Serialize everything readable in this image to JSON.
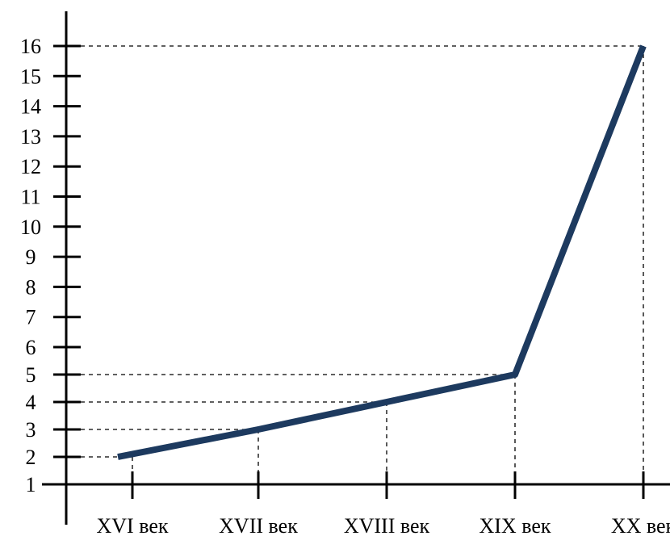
{
  "chart_data": {
    "type": "line",
    "categories": [
      "XVI век",
      "XVII век",
      "XVIII век",
      "XIX век",
      "XX век"
    ],
    "y_ticks": [
      "1",
      "2",
      "3",
      "4",
      "5",
      "6",
      "7",
      "8",
      "9",
      "10",
      "11",
      "12",
      "13",
      "14",
      "15",
      "16"
    ],
    "series": [
      {
        "values": [
          2,
          3,
          4,
          5,
          16
        ]
      }
    ],
    "ylim": [
      1,
      16
    ],
    "grid": false,
    "guide_lines": "dashed",
    "colors": {
      "line": "#1d3a5f",
      "axis": "#000000"
    },
    "title": "",
    "xlabel": "",
    "ylabel": ""
  }
}
